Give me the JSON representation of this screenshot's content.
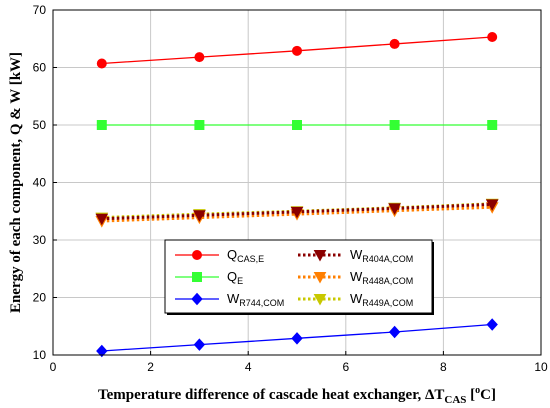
{
  "chart_data": {
    "type": "line",
    "xlabel": {
      "main": "Temperature difference of cascade heat exchanger, ΔT",
      "sub": "CAS",
      "unit_pre": " [",
      "sup": "o",
      "unit_post": "C]"
    },
    "ylabel": "Energy of each  component, Q & W [kW]",
    "xlim": [
      0,
      10
    ],
    "ylim": [
      10,
      70
    ],
    "xticks": [
      0,
      2,
      4,
      6,
      8,
      10
    ],
    "yticks": [
      10,
      20,
      30,
      40,
      50,
      60,
      70
    ],
    "xtick_labels": [
      "0",
      "2",
      "4",
      "6",
      "8",
      "10"
    ],
    "ytick_labels": [
      "10",
      "20",
      "30",
      "40",
      "50",
      "60",
      "70"
    ],
    "grid": true,
    "legend_position": "lower-middle",
    "x": [
      1,
      3,
      5,
      7,
      9
    ],
    "series": [
      {
        "name_main": "Q",
        "name_sub": "CAS,E",
        "color": "#ff0000",
        "marker": "circle",
        "line": "solid",
        "values": [
          60.7,
          61.8,
          62.9,
          64.1,
          65.3
        ]
      },
      {
        "name_main": "Q",
        "name_sub": "E",
        "color": "#33ff33",
        "marker": "square",
        "line": "solid",
        "values": [
          50.0,
          50.0,
          50.0,
          50.0,
          50.0
        ]
      },
      {
        "name_main": "W",
        "name_sub": "R744,COM",
        "color": "#0000ff",
        "marker": "diamond",
        "line": "solid",
        "values": [
          10.7,
          11.8,
          12.9,
          14.0,
          15.3
        ]
      },
      {
        "name_main": "W",
        "name_sub": "R404A,COM",
        "color": "#8b0000",
        "marker": "triangle-down",
        "line": "dotted",
        "values": [
          33.7,
          34.3,
          34.9,
          35.5,
          36.2
        ]
      },
      {
        "name_main": "W",
        "name_sub": "R448A,COM",
        "color": "#ff7f00",
        "marker": "triangle-down",
        "line": "dotted",
        "values": [
          33.3,
          33.9,
          34.5,
          35.1,
          35.7
        ]
      },
      {
        "name_main": "W",
        "name_sub": "R449A,COM",
        "color": "#c8c800",
        "marker": "triangle-down",
        "line": "dotted",
        "values": [
          33.9,
          34.5,
          35.0,
          35.6,
          36.3
        ]
      }
    ]
  }
}
